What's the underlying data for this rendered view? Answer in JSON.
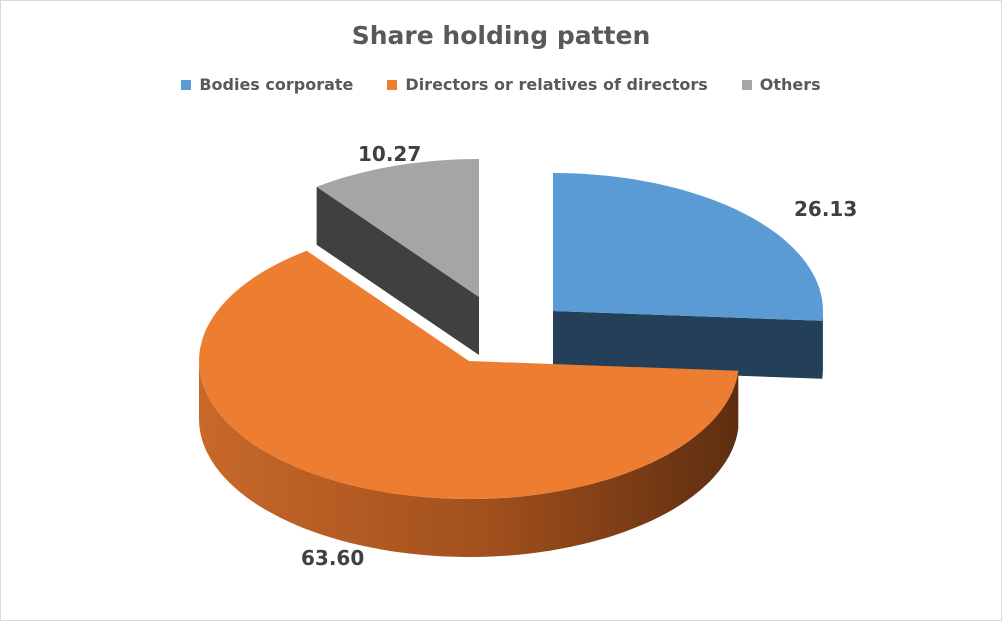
{
  "chart_data": {
    "type": "pie",
    "title": "Share holding patten",
    "series": [
      {
        "name": "Bodies corporate",
        "value": 26.13,
        "label": "26.13",
        "color": "#5B9BD5"
      },
      {
        "name": "Directors or relatives of directors",
        "value": 63.6,
        "label": "63.60",
        "color": "#ED7D31"
      },
      {
        "name": "Others",
        "value": 10.27,
        "label": "10.27",
        "color": "#A5A5A5"
      }
    ],
    "legend_position": "top",
    "style": "3D exploded pie"
  }
}
